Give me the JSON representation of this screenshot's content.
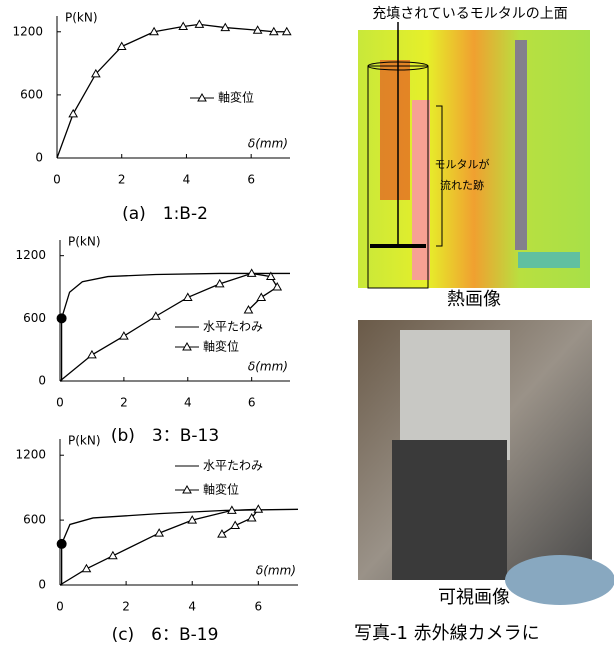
{
  "chart_data": [
    {
      "type": "line",
      "caption": "(a)　1:B-2",
      "y_label": "P(kN)",
      "x_label": "δ(mm)",
      "xlim": [
        0,
        7.2
      ],
      "ylim": [
        0,
        1350
      ],
      "xticks": [
        0,
        2,
        4,
        6
      ],
      "yticks": [
        0,
        600,
        1200
      ],
      "series": [
        {
          "name": "軸変位",
          "color": "#000000",
          "marker": "triangle",
          "x": [
            0,
            0.5,
            1.2,
            2,
            3,
            3.9,
            4.4,
            5.2,
            6.2,
            6.7,
            7.1
          ],
          "values": [
            0,
            420,
            800,
            1060,
            1200,
            1250,
            1270,
            1240,
            1215,
            1200,
            1200
          ]
        }
      ]
    },
    {
      "type": "line",
      "caption": "(b)　3：B-13",
      "y_label": "P(kN)",
      "x_label": "δ(mm)",
      "xlim": [
        0,
        7.2
      ],
      "ylim": [
        0,
        1350
      ],
      "xticks": [
        0,
        2,
        4,
        6
      ],
      "yticks": [
        0,
        600,
        1200
      ],
      "series": [
        {
          "name": "水平たわみ",
          "color": "#000000",
          "marker": "none",
          "x": [
            0,
            0.05,
            0.05,
            0.3,
            0.7,
            1.5,
            3,
            5,
            7.2
          ],
          "values": [
            0,
            0,
            600,
            850,
            950,
            1000,
            1020,
            1030,
            1030
          ],
          "marker_point": {
            "x": 0.05,
            "y": 600
          }
        },
        {
          "name": "軸変位",
          "color": "#000000",
          "marker": "triangle",
          "x": [
            0,
            1,
            2,
            3,
            4,
            5,
            6,
            6.6,
            6.8,
            6.3,
            5.9
          ],
          "values": [
            0,
            250,
            430,
            620,
            800,
            930,
            1030,
            1000,
            900,
            800,
            680
          ]
        }
      ]
    },
    {
      "type": "line",
      "caption": "(c)　6：B-19",
      "y_label": "P(kN)",
      "x_label": "δ(mm)",
      "xlim": [
        0,
        7.2
      ],
      "ylim": [
        0,
        1350
      ],
      "xticks": [
        0,
        2,
        4,
        6
      ],
      "yticks": [
        0,
        600,
        1200
      ],
      "series": [
        {
          "name": "水平たわみ",
          "color": "#000000",
          "marker": "none",
          "x": [
            0,
            0.05,
            0.05,
            0.3,
            1,
            3,
            5,
            7.2
          ],
          "values": [
            0,
            0,
            380,
            560,
            620,
            660,
            690,
            700
          ],
          "marker_point": {
            "x": 0.05,
            "y": 380
          }
        },
        {
          "name": "軸変位",
          "color": "#000000",
          "marker": "triangle",
          "x": [
            0,
            0.8,
            1.6,
            3,
            4,
            5.2,
            6,
            5.8,
            5.3,
            4.9
          ],
          "values": [
            0,
            150,
            270,
            480,
            600,
            690,
            700,
            620,
            550,
            470
          ]
        }
      ]
    }
  ],
  "thermal": {
    "top_label": "充填されているモルタルの上面",
    "trace_label": [
      "モルタルが",
      "流れた跡"
    ],
    "label": "熱画像"
  },
  "visible": {
    "label": "可視画像"
  },
  "caption": "写真-1 赤外線カメラに"
}
